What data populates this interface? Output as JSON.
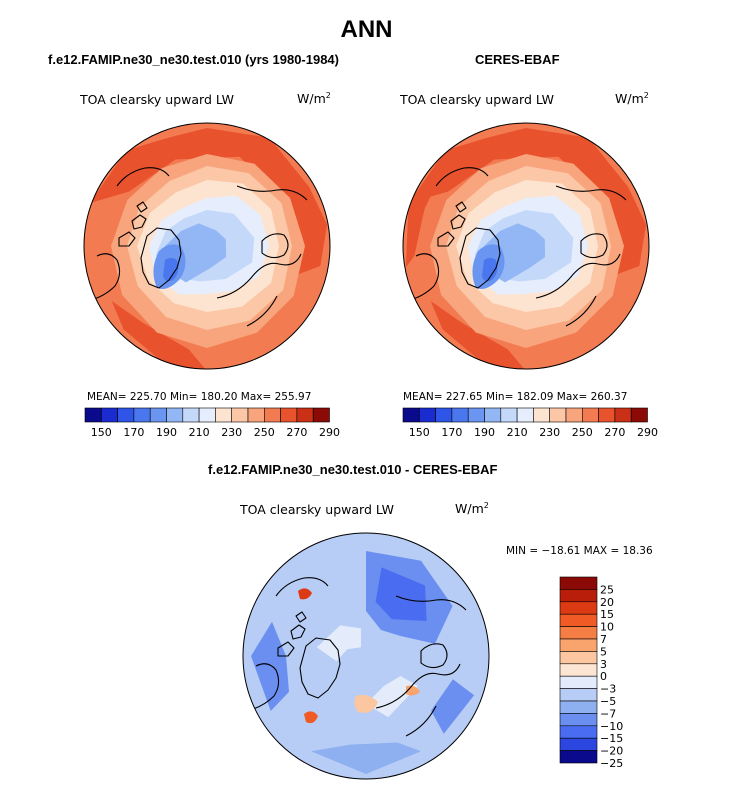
{
  "title": "ANN",
  "chart_data": [
    {
      "type": "heatmap",
      "projection": "north polar stereographic",
      "case_title": "f.e12.FAMIP.ne30_ne30.test.010 (yrs 1980-1984)",
      "variable": "TOA clearsky upward LW",
      "units_base": "W/m",
      "units_exp": "2",
      "stats_text": "MEAN= 225.70   Min= 180.20   Max= 255.97",
      "stats": {
        "mean": 225.7,
        "min": 180.2,
        "max": 255.97
      },
      "colorbar_levels": [
        150,
        160,
        170,
        180,
        190,
        200,
        210,
        220,
        230,
        240,
        250,
        260,
        270,
        280,
        290
      ],
      "colorbar_labels": [
        "150",
        "170",
        "190",
        "210",
        "230",
        "250",
        "270",
        "290"
      ]
    },
    {
      "type": "heatmap",
      "projection": "north polar stereographic",
      "case_title": "CERES-EBAF",
      "variable": "TOA clearsky upward LW",
      "units_base": "W/m",
      "units_exp": "2",
      "stats_text": "MEAN= 227.65   Min= 182.09   Max= 260.37",
      "stats": {
        "mean": 227.65,
        "min": 182.09,
        "max": 260.37
      },
      "colorbar_levels": [
        150,
        160,
        170,
        180,
        190,
        200,
        210,
        220,
        230,
        240,
        250,
        260,
        270,
        280,
        290
      ],
      "colorbar_labels": [
        "150",
        "170",
        "190",
        "210",
        "230",
        "250",
        "270",
        "290"
      ]
    },
    {
      "type": "heatmap",
      "projection": "north polar stereographic",
      "case_title": "f.e12.FAMIP.ne30_ne30.test.010 - CERES-EBAF",
      "variable": "TOA clearsky upward LW",
      "units_base": "W/m",
      "units_exp": "2",
      "stats_text": "MIN = −18.61  MAX =   18.36",
      "stats": {
        "min": -18.61,
        "max": 18.36
      },
      "colorbar_levels": [
        -25,
        -20,
        -15,
        -10,
        -7,
        -5,
        -3,
        0,
        3,
        5,
        7,
        10,
        15,
        20,
        25
      ],
      "colorbar_labels": [
        "25",
        "20",
        "15",
        "10",
        "7",
        "5",
        "3",
        "0",
        "−3",
        "−5",
        "−7",
        "−10",
        "−15",
        "−20",
        "−25"
      ]
    }
  ],
  "colors": {
    "abs_scale": [
      "#0a0a8c",
      "#1a2bd0",
      "#2f55e8",
      "#4a77ee",
      "#6a95f0",
      "#93b6f5",
      "#c4d8fa",
      "#e6eefd",
      "#fde4d0",
      "#fbc7a6",
      "#f8a47c",
      "#f37b52",
      "#e8532e",
      "#c93015",
      "#8c0a05"
    ],
    "diff_scale": [
      "#8c0a05",
      "#b81e0a",
      "#dc3a12",
      "#f05a25",
      "#f57e45",
      "#f9a36d",
      "#fcc6a0",
      "#fde5d3",
      "#e4ecfb",
      "#b7cdf5",
      "#8eaff0",
      "#6a8ff0",
      "#4a6cf0",
      "#2c46e0",
      "#0a0a8c"
    ]
  }
}
